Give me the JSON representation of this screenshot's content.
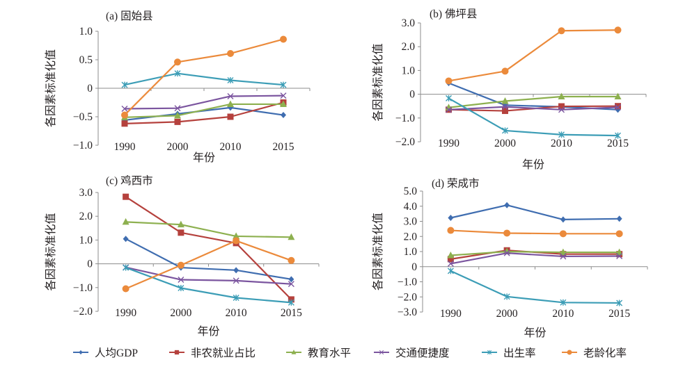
{
  "legend": {
    "placement": "bottom",
    "items": [
      {
        "key": "gdp",
        "label": "人均GDP",
        "color": "#3F6DB0",
        "marker": "diamond"
      },
      {
        "key": "nonagri",
        "label": "非农就业占比",
        "color": "#B5413D",
        "marker": "square"
      },
      {
        "key": "edu",
        "label": "教育水平",
        "color": "#8DB04F",
        "marker": "triangle"
      },
      {
        "key": "traffic",
        "label": "交通便捷度",
        "color": "#7B559F",
        "marker": "x"
      },
      {
        "key": "birth",
        "label": "出生率",
        "color": "#3C9DB6",
        "marker": "star"
      },
      {
        "key": "aging",
        "label": "老龄化率",
        "color": "#EB8A3B",
        "marker": "circle"
      }
    ]
  },
  "chart_data": [
    {
      "type": "line",
      "title": "(a) 固始县",
      "xlabel": "年份",
      "ylabel": "各因素标准化值",
      "categories": [
        "1990",
        "2000",
        "2010",
        "2015"
      ],
      "ylim": [
        -1.0,
        1.0
      ],
      "yticks": [
        1.0,
        0.5,
        0,
        -0.5,
        -1.0
      ],
      "ytick_labels": [
        "1.0",
        "0.5",
        "0",
        "−0.5",
        "−1.0"
      ],
      "grid": false,
      "series": [
        {
          "key": "gdp",
          "name": "人均GDP",
          "values": [
            -0.56,
            -0.45,
            -0.34,
            -0.47
          ]
        },
        {
          "key": "nonagri",
          "name": "非农就业占比",
          "values": [
            -0.62,
            -0.59,
            -0.5,
            -0.25
          ]
        },
        {
          "key": "edu",
          "name": "教育水平",
          "values": [
            -0.51,
            -0.48,
            -0.28,
            -0.28
          ]
        },
        {
          "key": "traffic",
          "name": "交通便捷度",
          "values": [
            -0.36,
            -0.35,
            -0.14,
            -0.13
          ]
        },
        {
          "key": "birth",
          "name": "出生率",
          "values": [
            0.06,
            0.26,
            0.14,
            0.06
          ]
        },
        {
          "key": "aging",
          "name": "老龄化率",
          "values": [
            -0.47,
            0.46,
            0.61,
            0.86
          ]
        }
      ]
    },
    {
      "type": "line",
      "title": "(b) 佛坪县",
      "xlabel": "年份",
      "ylabel": "各因素标准化值",
      "categories": [
        "1990",
        "2000",
        "2010",
        "2015"
      ],
      "ylim": [
        -2.0,
        3.0
      ],
      "yticks": [
        3.0,
        2.0,
        1.0,
        0,
        -1.0,
        -2.0
      ],
      "ytick_labels": [
        "3.0",
        "2.0",
        "1.0",
        "0",
        "−1.0",
        "−2.0"
      ],
      "grid": false,
      "series": [
        {
          "key": "gdp",
          "name": "人均GDP",
          "values": [
            0.47,
            -0.46,
            -0.53,
            -0.65
          ]
        },
        {
          "key": "nonagri",
          "name": "非农就业占比",
          "values": [
            -0.65,
            -0.7,
            -0.51,
            -0.5
          ]
        },
        {
          "key": "edu",
          "name": "教育水平",
          "values": [
            -0.56,
            -0.29,
            -0.1,
            -0.1
          ]
        },
        {
          "key": "traffic",
          "name": "交通便捷度",
          "values": [
            -0.65,
            -0.53,
            -0.65,
            -0.55
          ]
        },
        {
          "key": "birth",
          "name": "出生率",
          "values": [
            -0.17,
            -1.53,
            -1.7,
            -1.74
          ]
        },
        {
          "key": "aging",
          "name": "老龄化率",
          "values": [
            0.56,
            0.97,
            2.67,
            2.7
          ]
        }
      ]
    },
    {
      "type": "line",
      "title": "(c) 鸡西市",
      "xlabel": "年份",
      "ylabel": "各因素标准化值",
      "categories": [
        "1990",
        "2000",
        "2010",
        "2015"
      ],
      "ylim": [
        -2.0,
        3.0
      ],
      "yticks": [
        3.0,
        2.0,
        1.0,
        0,
        -1.0,
        -2.0
      ],
      "ytick_labels": [
        "3.0",
        "2.0",
        "1.0",
        "0",
        "−1.0",
        "−2.0"
      ],
      "grid": false,
      "series": [
        {
          "key": "gdp",
          "name": "人均GDP",
          "values": [
            1.05,
            -0.16,
            -0.27,
            -0.65
          ]
        },
        {
          "key": "nonagri",
          "name": "非农就业占比",
          "values": [
            2.82,
            1.31,
            0.87,
            -1.5
          ]
        },
        {
          "key": "edu",
          "name": "教育水平",
          "values": [
            1.76,
            1.65,
            1.16,
            1.12
          ]
        },
        {
          "key": "traffic",
          "name": "交通便捷度",
          "values": [
            -0.15,
            -0.67,
            -0.71,
            -0.85
          ]
        },
        {
          "key": "birth",
          "name": "出生率",
          "values": [
            -0.16,
            -1.02,
            -1.43,
            -1.63
          ]
        },
        {
          "key": "aging",
          "name": "老龄化率",
          "values": [
            -1.05,
            -0.06,
            0.97,
            0.14
          ]
        }
      ]
    },
    {
      "type": "line",
      "title": "(d) 荣成市",
      "xlabel": "年份",
      "ylabel": "各因素标准化值",
      "categories": [
        "1990",
        "2000",
        "2010",
        "2015"
      ],
      "ylim": [
        -3.0,
        5.0
      ],
      "yticks": [
        5.0,
        4.0,
        3.0,
        2.0,
        1.0,
        0,
        -1.0,
        -2.0,
        -3.0
      ],
      "ytick_labels": [
        "5.0",
        "4.0",
        "3.0",
        "2.0",
        "1.0",
        "0",
        "−1.0",
        "−2.0",
        "−3.0"
      ],
      "grid": false,
      "series": [
        {
          "key": "gdp",
          "name": "人均GDP",
          "values": [
            3.23,
            4.07,
            3.12,
            3.17
          ]
        },
        {
          "key": "nonagri",
          "name": "非农就业占比",
          "values": [
            0.5,
            1.08,
            0.83,
            0.83
          ]
        },
        {
          "key": "edu",
          "name": "教育水平",
          "values": [
            0.75,
            1.0,
            0.95,
            0.95
          ]
        },
        {
          "key": "traffic",
          "name": "交通便捷度",
          "values": [
            0.2,
            0.9,
            0.68,
            0.7
          ]
        },
        {
          "key": "birth",
          "name": "出生率",
          "values": [
            -0.28,
            -1.98,
            -2.37,
            -2.4
          ]
        },
        {
          "key": "aging",
          "name": "老龄化率",
          "values": [
            2.4,
            2.22,
            2.18,
            2.18
          ]
        }
      ]
    }
  ]
}
